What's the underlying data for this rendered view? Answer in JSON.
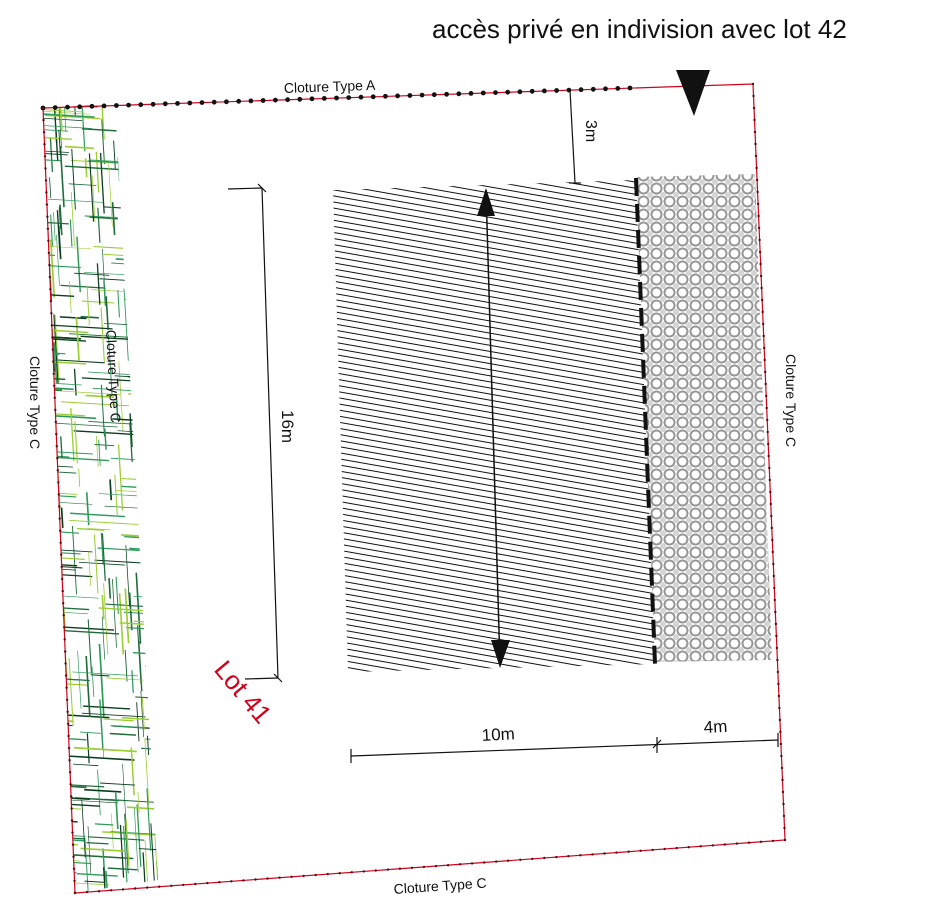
{
  "header": {
    "access_note": "accès privé en indivision avec lot 42"
  },
  "labels": {
    "fence_top": "Cloture Type A",
    "fence_bottom": "Cloture Type C",
    "fence_left": "Cloture Type C",
    "fence_left_inner": "Cloture Type C",
    "fence_right": "Cloture Type C",
    "lot": "Lot 41"
  },
  "dimensions": {
    "setback_top": "3m",
    "building_length": "16m",
    "building_width": "10m",
    "terrace_width": "4m"
  },
  "colors": {
    "boundary": "#d0021b",
    "lot_label": "#d0021b",
    "vegetation": [
      "#1f6b3a",
      "#2e9a5a",
      "#9acd32",
      "#0b3d1e"
    ],
    "hatch": "#111111",
    "terrace_pattern": "#8a8a8a"
  }
}
